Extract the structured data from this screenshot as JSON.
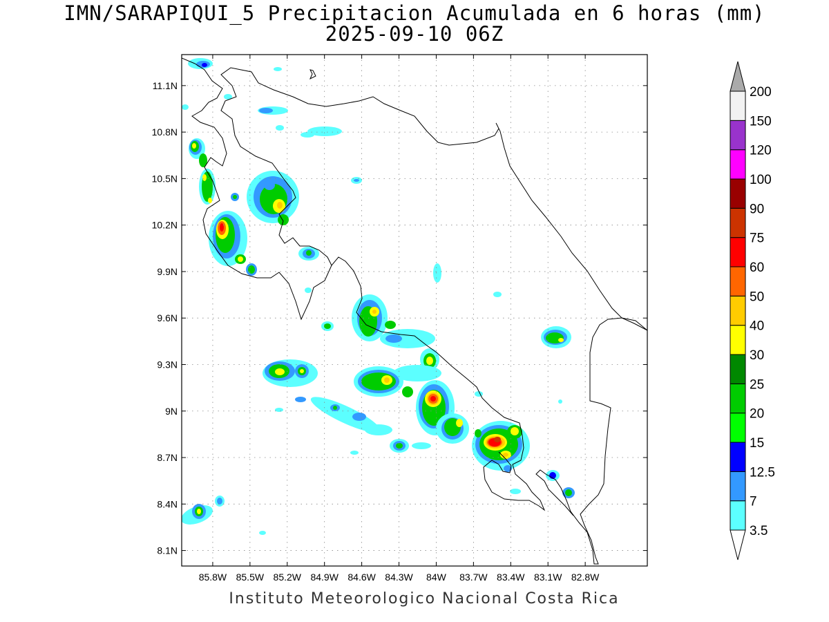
{
  "title_line1": "IMN/SARAPIQUI_5 Precipitacion Acumulada en 6 horas (mm)",
  "title_line2": "2025-09-10 06Z",
  "footer": "Instituto Meteorologico Nacional Costa Rica",
  "map": {
    "lon_range": [
      -86.05,
      -82.3
    ],
    "lat_range": [
      8.0,
      11.3
    ],
    "lon_ticks": [
      "85.8W",
      "85.5W",
      "85.2W",
      "84.9W",
      "84.6W",
      "84.3W",
      "84W",
      "83.7W",
      "83.4W",
      "83.1W",
      "82.8W"
    ],
    "lat_ticks": [
      "11.1N",
      "10.8N",
      "10.5N",
      "10.2N",
      "9.9N",
      "9.6N",
      "9.3N",
      "9N",
      "8.7N",
      "8.4N",
      "8.1N"
    ],
    "grid": true,
    "coastline_color": "#000000"
  },
  "colorbar": {
    "levels": [
      "3.5",
      "7",
      "12.5",
      "15",
      "20",
      "25",
      "30",
      "40",
      "50",
      "60",
      "75",
      "90",
      "100",
      "120",
      "150",
      "200"
    ],
    "colors": [
      "#ffffff",
      "#5cffff",
      "#3399ff",
      "#0000ff",
      "#00ff00",
      "#00cc00",
      "#008800",
      "#ffff00",
      "#ffcc00",
      "#ff6600",
      "#ff0000",
      "#cc3300",
      "#990000",
      "#ff00ff",
      "#9933cc",
      "#f2f2f2",
      "#aaaaaa"
    ]
  }
}
